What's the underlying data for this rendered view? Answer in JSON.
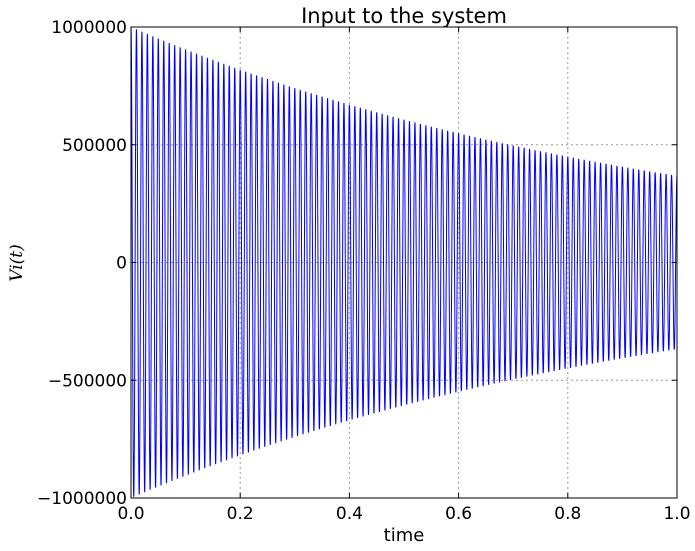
{
  "chart_data": {
    "type": "line",
    "title": "Input to the system",
    "xlabel": "time",
    "ylabel": "V_i(t)",
    "ylabel_display": "Vi(t)",
    "xlim": [
      0.0,
      1.0
    ],
    "ylim": [
      -1000000,
      1000000
    ],
    "xticks": [
      0.0,
      0.2,
      0.4,
      0.6,
      0.8,
      1.0
    ],
    "xtick_labels": [
      "0.0",
      "0.2",
      "0.4",
      "0.6",
      "0.8",
      "1.0"
    ],
    "yticks": [
      -1000000,
      -500000,
      0,
      500000,
      1000000
    ],
    "ytick_labels": [
      "−1000000",
      "−500000",
      "0",
      "500000",
      "1000000"
    ],
    "grid": true,
    "series": [
      {
        "color": "#0000ff",
        "function": "A*exp(-t/tau)*cos(2*pi*f*t)",
        "amplitude": 1000000,
        "decay_time_constant": 1.0,
        "frequency": 100,
        "envelope": {
          "x": [
            0.0,
            0.2,
            0.4,
            0.6,
            0.8,
            1.0
          ],
          "y": [
            1000000,
            818731,
            670320,
            548812,
            449329,
            367879
          ]
        }
      }
    ]
  }
}
